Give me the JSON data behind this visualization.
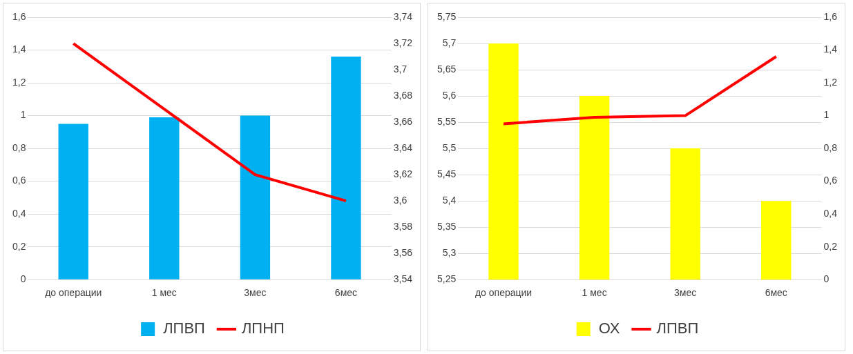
{
  "chart_data": [
    {
      "type": "bar",
      "categories": [
        "до операции",
        "1 мес",
        "3мес",
        "6мес"
      ],
      "series": [
        {
          "name": "ЛПВП",
          "color": "#00b0f0",
          "values": [
            0.95,
            0.99,
            1.0,
            1.36
          ]
        },
        {
          "name": "ЛПНП",
          "type": "line",
          "axis": "y2",
          "color": "#ff0000",
          "values": [
            3.72,
            3.67,
            3.62,
            3.6
          ]
        }
      ],
      "ylim": [
        0,
        1.6
      ],
      "yticks": [
        0,
        {
          "value": 0.2,
          "label": "0,2"
        },
        {
          "value": 0.4,
          "label": "0,4"
        },
        {
          "value": 0.6,
          "label": "0,6"
        },
        {
          "value": 0.8,
          "label": "0,8"
        },
        1,
        {
          "value": 1.2,
          "label": "1,2"
        },
        {
          "value": 1.4,
          "label": "1,4"
        },
        {
          "value": 1.6,
          "label": "1,6"
        }
      ],
      "y2lim": [
        3.54,
        3.74
      ],
      "y2ticks": [
        {
          "value": 3.54,
          "label": "3,54"
        },
        {
          "value": 3.56,
          "label": "3,56"
        },
        {
          "value": 3.58,
          "label": "3,58"
        },
        {
          "value": 3.6,
          "label": "3,6"
        },
        {
          "value": 3.62,
          "label": "3,62"
        },
        {
          "value": 3.64,
          "label": "3,64"
        },
        {
          "value": 3.66,
          "label": "3,66"
        },
        {
          "value": 3.68,
          "label": "3,68"
        },
        {
          "value": 3.7,
          "label": "3,7"
        },
        {
          "value": 3.72,
          "label": "3,72"
        },
        {
          "value": 3.74,
          "label": "3,74"
        }
      ],
      "grid": "y",
      "legend": "bottom",
      "marker": "none"
    },
    {
      "type": "bar",
      "categories": [
        "до операции",
        "1 мес",
        "3мес",
        "6мес"
      ],
      "series": [
        {
          "name": "ОХ",
          "color": "#ffff00",
          "values": [
            5.7,
            5.6,
            5.5,
            5.4
          ]
        },
        {
          "name": "ЛПВП",
          "type": "line",
          "axis": "y2",
          "color": "#ff0000",
          "values": [
            0.95,
            0.99,
            1.0,
            1.36
          ]
        }
      ],
      "ylim": [
        5.25,
        5.75
      ],
      "yticks": [
        {
          "value": 5.25,
          "label": "5,25"
        },
        {
          "value": 5.3,
          "label": "5,3"
        },
        {
          "value": 5.35,
          "label": "5,35"
        },
        {
          "value": 5.4,
          "label": "5,4"
        },
        {
          "value": 5.45,
          "label": "5,45"
        },
        {
          "value": 5.5,
          "label": "5,5"
        },
        {
          "value": 5.55,
          "label": "5,55"
        },
        {
          "value": 5.6,
          "label": "5,6"
        },
        {
          "value": 5.65,
          "label": "5,65"
        },
        {
          "value": 5.7,
          "label": "5,7"
        },
        {
          "value": 5.75,
          "label": "5,75"
        }
      ],
      "y2lim": [
        0,
        1.6
      ],
      "y2ticks": [
        0,
        {
          "value": 0.2,
          "label": "0,2"
        },
        {
          "value": 0.4,
          "label": "0,4"
        },
        {
          "value": 0.6,
          "label": "0,6"
        },
        {
          "value": 0.8,
          "label": "0,8"
        },
        1,
        {
          "value": 1.2,
          "label": "1,2"
        },
        {
          "value": 1.4,
          "label": "1,4"
        },
        {
          "value": 1.6,
          "label": "1,6"
        }
      ],
      "grid": "y",
      "legend": "bottom",
      "marker": "none"
    }
  ]
}
